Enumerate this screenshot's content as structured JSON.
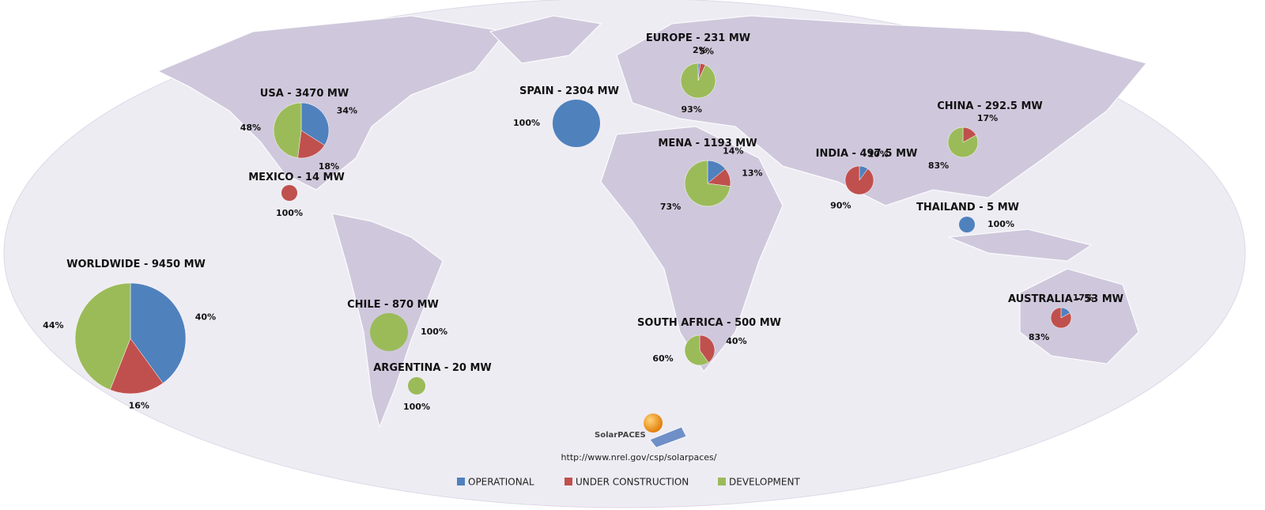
{
  "regions": [
    {
      "title": "USA - 3470 MW",
      "slices": [
        {
          "value": 34,
          "label": "34%",
          "color": "#4f81bd"
        },
        {
          "value": 18,
          "label": "18%",
          "color": "#c0504d"
        },
        {
          "value": 48,
          "label": "48%",
          "color": "#9bbb59"
        }
      ]
    },
    {
      "title": "MEXICO - 14 MW",
      "slices": [
        {
          "value": 100,
          "label": "100%",
          "color": "#c0504d"
        }
      ]
    },
    {
      "title": "WORLDWIDE - 9450 MW",
      "slices": [
        {
          "value": 40,
          "label": "40%",
          "color": "#4f81bd"
        },
        {
          "value": 16,
          "label": "16%",
          "color": "#c0504d"
        },
        {
          "value": 44,
          "label": "44%",
          "color": "#9bbb59"
        }
      ]
    },
    {
      "title": "SPAIN - 2304 MW",
      "slices": [
        {
          "value": 100,
          "label": "100%",
          "color": "#4f81bd"
        }
      ]
    },
    {
      "title": "EUROPE - 231 MW",
      "slices": [
        {
          "value": 2,
          "label": "2%",
          "color": "#4f81bd"
        },
        {
          "value": 5,
          "label": "5%",
          "color": "#c0504d"
        },
        {
          "value": 93,
          "label": "93%",
          "color": "#9bbb59"
        }
      ]
    },
    {
      "title": "MENA - 1193 MW",
      "slices": [
        {
          "value": 14,
          "label": "14%",
          "color": "#4f81bd"
        },
        {
          "value": 13,
          "label": "13%",
          "color": "#c0504d"
        },
        {
          "value": 73,
          "label": "73%",
          "color": "#9bbb59"
        }
      ]
    },
    {
      "title": "INDIA - 497.5 MW",
      "slices": [
        {
          "value": 10,
          "label": "10%",
          "color": "#4f81bd"
        },
        {
          "value": 90,
          "label": "90%",
          "color": "#c0504d"
        }
      ]
    },
    {
      "title": "CHINA - 292.5 MW",
      "slices": [
        {
          "value": 17,
          "label": "17%",
          "color": "#c0504d"
        },
        {
          "value": 83,
          "label": "83%",
          "color": "#9bbb59"
        }
      ]
    },
    {
      "title": "THAILAND - 5 MW",
      "slices": [
        {
          "value": 100,
          "label": "100%",
          "color": "#4f81bd"
        }
      ]
    },
    {
      "title": "AUSTRALIA - 53 MW",
      "slices": [
        {
          "value": 17,
          "label": "17%",
          "color": "#4f81bd"
        },
        {
          "value": 83,
          "label": "83%",
          "color": "#c0504d"
        }
      ]
    },
    {
      "title": "SOUTH AFRICA - 500 MW",
      "slices": [
        {
          "value": 40,
          "label": "40%",
          "color": "#c0504d"
        },
        {
          "value": 60,
          "label": "60%",
          "color": "#9bbb59"
        }
      ]
    },
    {
      "title": "CHILE - 870 MW",
      "slices": [
        {
          "value": 100,
          "label": "100%",
          "color": "#9bbb59"
        }
      ]
    },
    {
      "title": "ARGENTINA - 20 MW",
      "slices": [
        {
          "value": 100,
          "label": "100%",
          "color": "#9bbb59"
        }
      ]
    }
  ],
  "logo": "SolarPACES",
  "source": "http://www.nrel.gov/csp/solarpaces/",
  "legend": [
    {
      "name": "OPERATIONAL",
      "color": "#4f81bd"
    },
    {
      "name": "UNDER CONSTRUCTION",
      "color": "#c0504d"
    },
    {
      "name": "DEVELOPMENT",
      "color": "#9bbb59"
    }
  ]
}
